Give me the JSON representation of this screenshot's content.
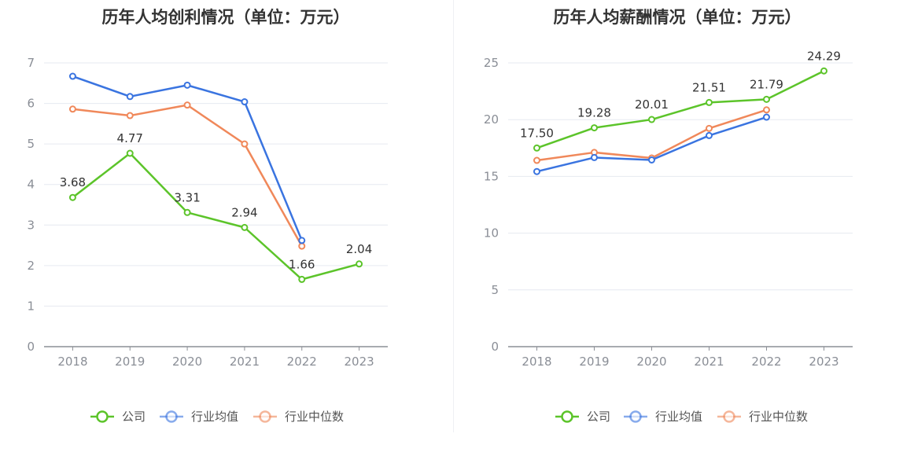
{
  "chart_data": [
    {
      "type": "line",
      "title": "历年人均创利情况（单位：万元）",
      "categories": [
        "2018",
        "2019",
        "2020",
        "2021",
        "2022",
        "2023"
      ],
      "ylim": [
        0,
        7
      ],
      "yticks": [
        0,
        1,
        2,
        3,
        4,
        5,
        6,
        7
      ],
      "grid": true,
      "legend_position": "bottom",
      "series": [
        {
          "name": "公司",
          "color": "#5cc42a",
          "values": [
            3.68,
            4.77,
            3.31,
            2.94,
            1.66,
            2.04
          ],
          "labels": [
            "3.68",
            "4.77",
            "3.31",
            "2.94",
            "1.66",
            "2.04"
          ]
        },
        {
          "name": "行业均值",
          "color": "#3a74e0",
          "values": [
            6.67,
            6.17,
            6.45,
            6.04,
            2.62,
            null
          ]
        },
        {
          "name": "行业中位数",
          "color": "#f0885a",
          "values": [
            5.86,
            5.7,
            5.96,
            5.0,
            2.48,
            null
          ]
        }
      ]
    },
    {
      "type": "line",
      "title": "历年人均薪酬情况（单位：万元）",
      "categories": [
        "2018",
        "2019",
        "2020",
        "2021",
        "2022",
        "2023"
      ],
      "ylim": [
        0,
        25
      ],
      "yticks": [
        0,
        5,
        10,
        15,
        20,
        25
      ],
      "grid": true,
      "legend_position": "bottom",
      "series": [
        {
          "name": "公司",
          "color": "#5cc42a",
          "values": [
            17.5,
            19.28,
            20.01,
            21.51,
            21.79,
            24.29
          ],
          "labels": [
            "17.50",
            "19.28",
            "20.01",
            "21.51",
            "21.79",
            "24.29"
          ]
        },
        {
          "name": "行业均值",
          "color": "#3a74e0",
          "values": [
            15.43,
            16.66,
            16.45,
            18.6,
            20.22,
            null
          ]
        },
        {
          "name": "行业中位数",
          "color": "#f0885a",
          "values": [
            16.41,
            17.11,
            16.62,
            19.23,
            20.86,
            null
          ]
        }
      ]
    }
  ]
}
